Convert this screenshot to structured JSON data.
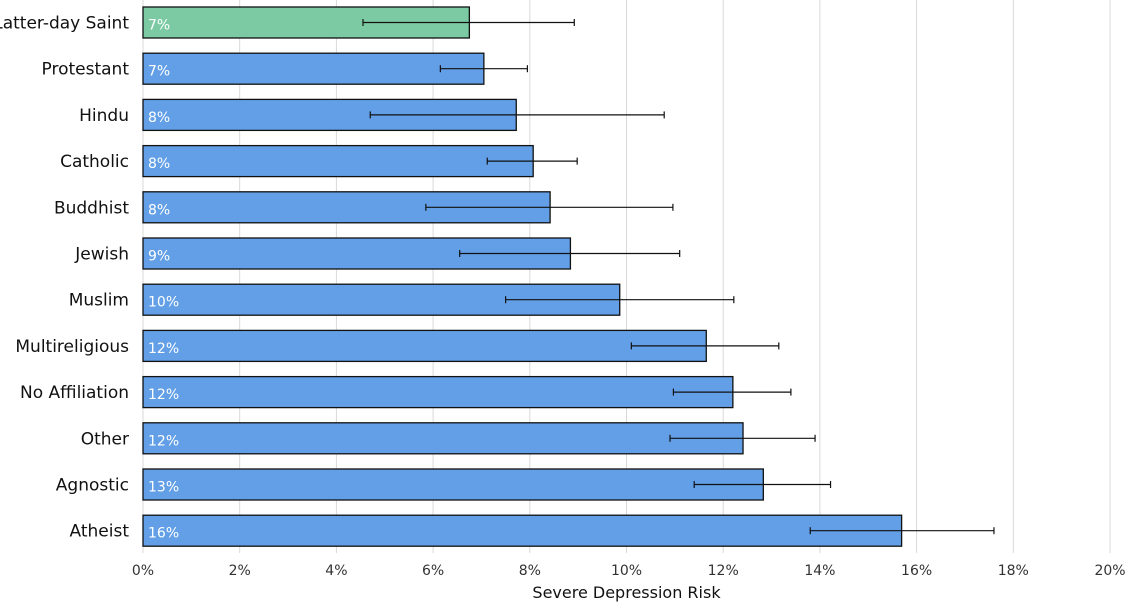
{
  "chart_data": {
    "type": "bar",
    "orientation": "horizontal",
    "xlabel": "Severe Depression Risk",
    "xlim": [
      0,
      20
    ],
    "x_ticks": [
      "0%",
      "2%",
      "4%",
      "6%",
      "8%",
      "10%",
      "12%",
      "14%",
      "16%",
      "18%",
      "20%"
    ],
    "grid": true,
    "colors": {
      "highlight": "#7ccaa3",
      "default": "#629fe6",
      "outline": "#111111"
    },
    "categories": [
      "Latter-day Saint",
      "Protestant",
      "Hindu",
      "Catholic",
      "Buddhist",
      "Jewish",
      "Muslim",
      "Multireligious",
      "No Affiliation",
      "Other",
      "Agnostic",
      "Atheist"
    ],
    "values": [
      6.75,
      7.05,
      7.72,
      8.07,
      8.42,
      8.84,
      9.86,
      11.65,
      12.2,
      12.41,
      12.83,
      15.69
    ],
    "data_labels": [
      "7%",
      "7%",
      "8%",
      "8%",
      "8%",
      "9%",
      "10%",
      "12%",
      "12%",
      "12%",
      "13%",
      "16%"
    ],
    "error_low": [
      4.55,
      6.15,
      4.7,
      7.12,
      5.85,
      6.55,
      7.5,
      10.1,
      10.97,
      10.9,
      11.4,
      13.8
    ],
    "error_high": [
      8.92,
      7.95,
      10.78,
      8.98,
      10.96,
      11.1,
      12.22,
      13.15,
      13.4,
      13.9,
      14.22,
      17.6
    ],
    "highlight_index": 0
  }
}
